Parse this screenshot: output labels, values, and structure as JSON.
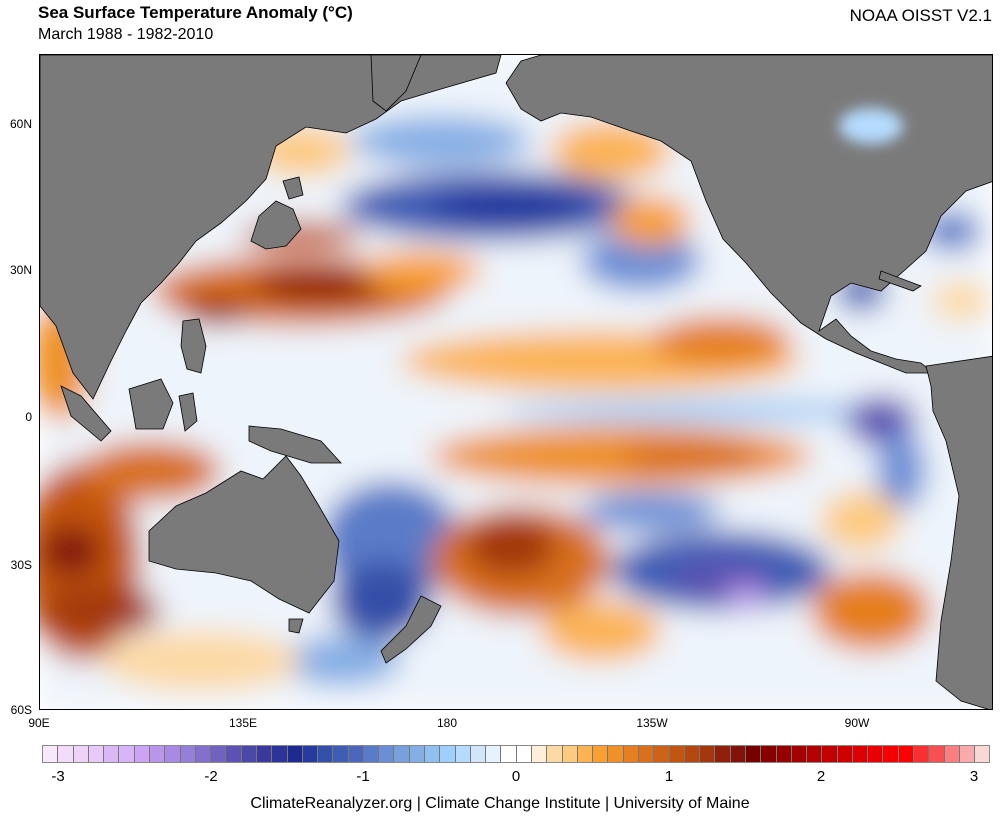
{
  "header": {
    "title": "Sea Surface Temperature Anomaly (°C)",
    "subtitle": "March 1988 - 1982-2010",
    "source": "NOAA OISST V2.1"
  },
  "map": {
    "lat_labels": [
      "60N",
      "30N",
      "0",
      "30S",
      "60S"
    ],
    "lon_labels": [
      "90E",
      "135E",
      "180",
      "135W",
      "90W"
    ],
    "land_color": "#7a7a7a"
  },
  "colorbar": {
    "ticks": [
      "-3",
      "-2",
      "-1",
      "0",
      "1",
      "2",
      "3"
    ],
    "range": [
      -3,
      3
    ],
    "colors": [
      "#f7e8fb",
      "#f3dcf9",
      "#efd2f8",
      "#e9c9f7",
      "#dcb7f5",
      "#d8b5f8",
      "#cda3f6",
      "#ba96ea",
      "#a98ae2",
      "#9480d8",
      "#8470cc",
      "#6f62c0",
      "#5d52b2",
      "#4c48a8",
      "#3b3a9c",
      "#2c3399",
      "#1f2a8f",
      "#283a9e",
      "#3550a8",
      "#3f5db5",
      "#4a67bb",
      "#5a7bc8",
      "#6b8fd6",
      "#78a0dc",
      "#84aee4",
      "#90c0f0",
      "#9fd0fd",
      "#b5dcff",
      "#d0e6fb",
      "#e6f2fd",
      "#ffffff",
      "#ffffff",
      "#ffeed8",
      "#fdd9a4",
      "#fdca80",
      "#fbb354",
      "#f9a030",
      "#ee9128",
      "#e57f1f",
      "#d8701c",
      "#cd6318",
      "#c25511",
      "#b4480f",
      "#a3370d",
      "#902009",
      "#811308",
      "#760000",
      "#860000",
      "#950000",
      "#a40000",
      "#b30000",
      "#c20000",
      "#cf0000",
      "#dc0000",
      "#e80000",
      "#f60000",
      "#ff0000",
      "#f83030",
      "#f85050",
      "#fa7f7f",
      "#f9aaaa",
      "#f8d8d4"
    ]
  },
  "footer": "ClimateReanalyzer.org | Climate Change Institute | University of Maine"
}
